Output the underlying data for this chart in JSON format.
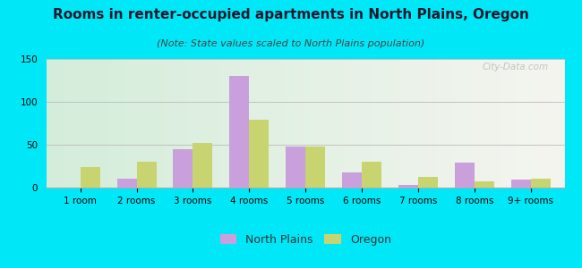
{
  "title": "Rooms in renter-occupied apartments in North Plains, Oregon",
  "subtitle": "(Note: State values scaled to North Plains population)",
  "categories": [
    "1 room",
    "2 rooms",
    "3 rooms",
    "4 rooms",
    "5 rooms",
    "6 rooms",
    "7 rooms",
    "8 rooms",
    "9+ rooms"
  ],
  "north_plains": [
    0,
    10,
    45,
    130,
    48,
    18,
    3,
    29,
    9
  ],
  "oregon": [
    24,
    30,
    52,
    79,
    48,
    30,
    13,
    7,
    10
  ],
  "north_plains_color": "#c9a0dc",
  "oregon_color": "#c8d470",
  "background_outer": "#00e8f8",
  "ylim": [
    0,
    150
  ],
  "yticks": [
    0,
    50,
    100,
    150
  ],
  "bar_width": 0.35,
  "watermark": "City-Data.com",
  "title_fontsize": 11,
  "subtitle_fontsize": 8,
  "tick_fontsize": 7.5,
  "legend_fontsize": 9
}
